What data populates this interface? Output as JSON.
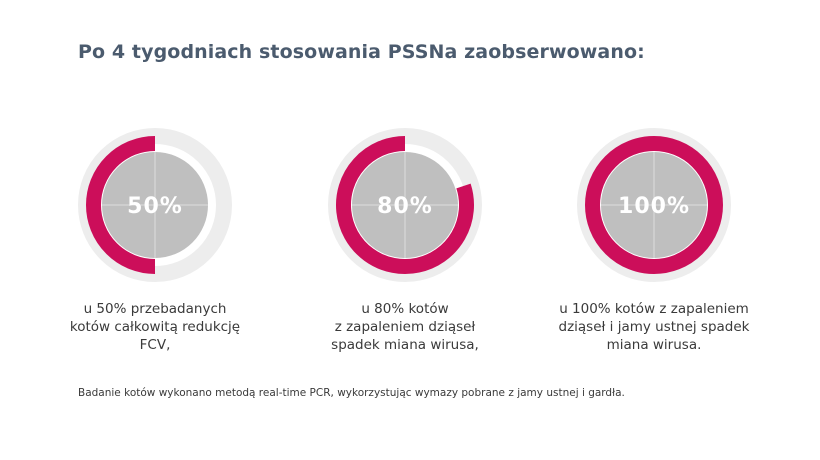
{
  "title": "Po 4 tygodniach stosowania PSSNa  zaobserwowano:",
  "colors": {
    "accent": "#cc0e5a",
    "disc": "#bfbfbf",
    "ring_bg": "#ededed",
    "title": "#4b5b6e",
    "text": "#3a3a3a"
  },
  "chart_data": {
    "type": "pie",
    "title": "Po 4 tygodniach stosowania PSSNa  zaobserwowano:",
    "series": [
      {
        "name": "FCV",
        "value": 50,
        "label": "50%",
        "caption": [
          "u 50% przebadanych",
          "kotów całkowitą redukcję",
          "FCV,"
        ]
      },
      {
        "name": "zapalenie dziąseł",
        "value": 80,
        "label": "80%",
        "caption": [
          "u 80% kotów",
          "z zapaleniem dziąseł",
          "spadek miana wirusa,"
        ]
      },
      {
        "name": "zapalenie dziąseł i jamy ustnej",
        "value": 100,
        "label": "100%",
        "caption": [
          "u 100% kotów z zapaleniem",
          "dziąseł i jamy ustnej spadek",
          "miana wirusa."
        ]
      }
    ]
  },
  "footnote": "Badanie kotów wykonano metodą real-time PCR, wykorzystując wymazy pobrane z jamy ustnej i gardła."
}
